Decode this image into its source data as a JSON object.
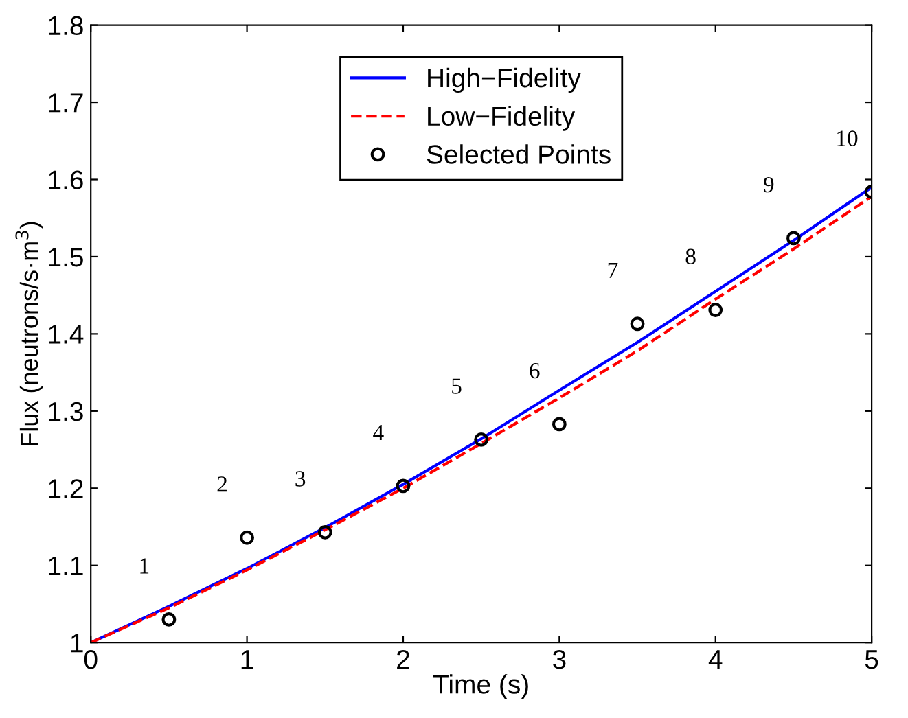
{
  "chart_data": {
    "type": "line",
    "xlabel": "Time (s)",
    "ylabel": "Flux (neutrons/s·m$^{3}$)",
    "xlim": [
      0,
      5
    ],
    "ylim": [
      1,
      1.8
    ],
    "xticks": [
      0,
      1,
      2,
      3,
      4,
      5
    ],
    "yticks": [
      1,
      1.1,
      1.2,
      1.3,
      1.4,
      1.5,
      1.6,
      1.7,
      1.8
    ],
    "grid": false,
    "legend": "top",
    "series": [
      {
        "name": "High−Fidelity",
        "color": "#0000ff",
        "line_style": "solid",
        "marker": "none",
        "x": [
          0,
          0.5,
          1,
          1.5,
          2,
          2.5,
          3,
          3.5,
          4,
          4.5,
          5
        ],
        "values": [
          1,
          1.047,
          1.096,
          1.149,
          1.205,
          1.264,
          1.327,
          1.389,
          1.455,
          1.521,
          1.59
        ]
      },
      {
        "name": "Low−Fidelity",
        "color": "#ff0000",
        "line_style": "dashed",
        "marker": "none",
        "x": [
          0,
          0.5,
          1,
          1.5,
          2,
          2.5,
          3,
          3.5,
          4,
          4.5,
          5
        ],
        "values": [
          1,
          1.045,
          1.094,
          1.146,
          1.2,
          1.258,
          1.317,
          1.378,
          1.445,
          1.51,
          1.578
        ]
      },
      {
        "name": "Selected Points",
        "type": "scatter",
        "color": "#000000",
        "marker": "circle",
        "x": [
          0.5,
          1,
          1.5,
          2,
          2.5,
          3,
          3.5,
          4,
          4.5,
          5
        ],
        "values": [
          1.03,
          1.136,
          1.143,
          1.203,
          1.263,
          1.283,
          1.413,
          1.431,
          1.524,
          1.584
        ]
      }
    ],
    "annotations": [
      {
        "text": "1",
        "x": 0.5,
        "y": 1.03
      },
      {
        "text": "2",
        "x": 1,
        "y": 1.136
      },
      {
        "text": "3",
        "x": 1.5,
        "y": 1.143
      },
      {
        "text": "4",
        "x": 2,
        "y": 1.203
      },
      {
        "text": "5",
        "x": 2.5,
        "y": 1.263
      },
      {
        "text": "6",
        "x": 3,
        "y": 1.283
      },
      {
        "text": "7",
        "x": 3.5,
        "y": 1.413
      },
      {
        "text": "8",
        "x": 4,
        "y": 1.431
      },
      {
        "text": "9",
        "x": 4.5,
        "y": 1.524
      },
      {
        "text": "10",
        "x": 5,
        "y": 1.584
      }
    ]
  }
}
